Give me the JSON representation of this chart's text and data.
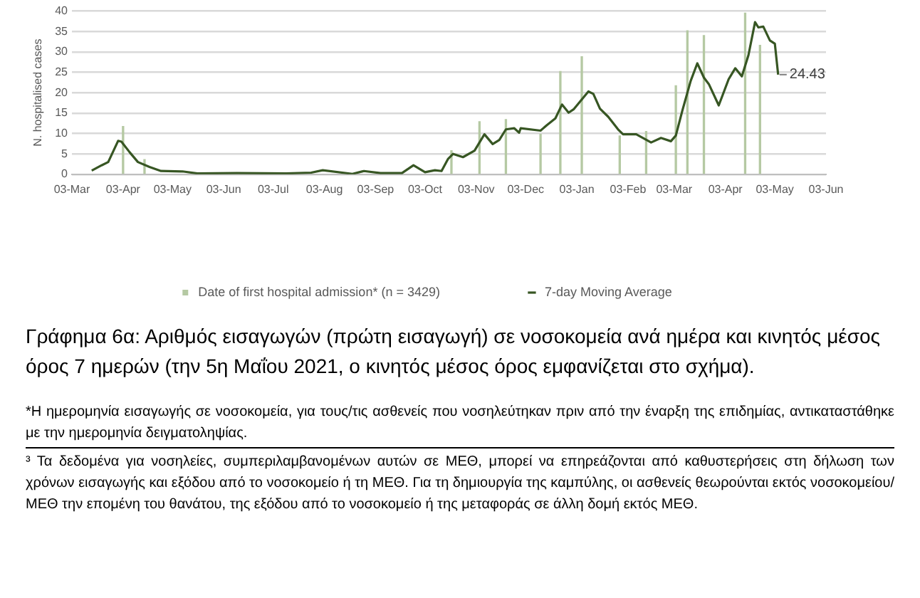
{
  "chart_data": {
    "type": "line",
    "title": "Γράφημα 6α: Αριθμός εισαγωγών (πρώτη εισαγωγή) σε νοσοκομεία ανά ημέρα και κινητός μέσος όρος 7 ημερών (την 5η Μαΐου 2021, ο κινητός μέσος όρος εμφανίζεται στο σχήμα).",
    "ylabel": "N. hospitalised cases",
    "annotations": [
      {
        "text": "24.43",
        "x": "2021-05-05",
        "y": 24.43
      },
      "*Η ημερομηνία εισαγωγής σε νοσοκομεία, για τους/τις ασθενείς που νοσηλεύτηκαν πριν από την έναρξη της επιδημίας, αντικαταστάθηκε με την ημερομηνία δειγματοληψίας.",
      "³ Τα δεδομένα για νοσηλείες, συμπεριλαμβανομένων αυτών σε ΜΕΘ, μπορεί να επηρεάζονται από καθυστερήσεις στη δήλωση των χρόνων εισαγωγής και εξόδου από το νοσοκομείο ή τη ΜΕΘ. Για τη δημιουργία της καμπύλης, οι ασθενείς θεωρούνται εκτός νοσοκομείου/ΜΕΘ την επομένη του θανάτου, της εξόδου από το νοσοκομείο ή της μεταφοράς σε άλλη δομή εκτός ΜΕΘ."
    ],
    "series": [
      {
        "type": "bar",
        "name": "Date of first hospital admission* (n = 3429)",
        "color": "#b5c9a3",
        "x": [
          "2020-04-03",
          "2020-04-16",
          "2020-10-19",
          "2020-11-05",
          "2020-11-21",
          "2020-12-12",
          "2020-12-24",
          "2021-01-06",
          "2021-01-29",
          "2021-02-14",
          "2021-03-04",
          "2021-03-11",
          "2021-03-21",
          "2021-04-15",
          "2021-04-24"
        ],
        "values": [
          11.7,
          3.6,
          5.8,
          12.9,
          13.4,
          9.8,
          25.2,
          28.8,
          9.4,
          10.5,
          21.7,
          35.2,
          34,
          39.5,
          31.6
        ]
      },
      {
        "name": "7-day Moving Average",
        "color": "#375623",
        "x": [
          "2020-03-15",
          "2020-03-21",
          "2020-03-25",
          "2020-03-31",
          "2020-04-02",
          "2020-04-07",
          "2020-04-12",
          "2020-04-19",
          "2020-04-26",
          "2020-05-09",
          "2020-05-18",
          "2020-06-11",
          "2020-07-11",
          "2020-07-26",
          "2020-08-02",
          "2020-08-20",
          "2020-08-27",
          "2020-09-06",
          "2020-09-19",
          "2020-09-26",
          "2020-10-03",
          "2020-10-09",
          "2020-10-13",
          "2020-10-17",
          "2020-10-20",
          "2020-10-26",
          "2020-11-02",
          "2020-11-08",
          "2020-11-13",
          "2020-11-17",
          "2020-11-21",
          "2020-11-26",
          "2020-11-29",
          "2020-11-30",
          "2020-12-12",
          "2020-12-16",
          "2020-12-21",
          "2020-12-25",
          "2020-12-29",
          "2021-01-01",
          "2021-01-10",
          "2021-01-13",
          "2021-01-17",
          "2021-01-22",
          "2021-01-28",
          "2021-01-31",
          "2021-02-08",
          "2021-02-17",
          "2021-02-23",
          "2021-03-01",
          "2021-03-04",
          "2021-03-08",
          "2021-03-13",
          "2021-03-17",
          "2021-03-21",
          "2021-03-24",
          "2021-03-30",
          "2021-04-05",
          "2021-04-09",
          "2021-04-13",
          "2021-04-17",
          "2021-04-21",
          "2021-04-23",
          "2021-04-26",
          "2021-04-30",
          "2021-05-03",
          "2021-05-05"
        ],
        "values": [
          0.9,
          2.2,
          3,
          8.2,
          8,
          5.4,
          3,
          1.8,
          0.8,
          0.7,
          0.2,
          0.3,
          0.2,
          0.4,
          1.0,
          0.1,
          0.8,
          0.3,
          0.3,
          2.2,
          0.5,
          1.0,
          0.8,
          3.8,
          5.0,
          4.2,
          5.8,
          9.8,
          7.4,
          8.4,
          11,
          11.3,
          10.2,
          11.3,
          10.7,
          12.1,
          13.7,
          17.1,
          15.1,
          15.9,
          20.3,
          19.7,
          16.1,
          14.1,
          11,
          9.8,
          9.8,
          7.8,
          8.9,
          8.1,
          9.5,
          15.7,
          22.9,
          27.2,
          23.7,
          22.1,
          16.9,
          23.3,
          26.0,
          24.0,
          29.2,
          37.3,
          36.0,
          36.2,
          32.8,
          32.0,
          24.43
        ]
      }
    ],
    "xlim": [
      "2020-03-03",
      "2021-06-03"
    ],
    "xticks": [
      {
        "value": "2020-03-03",
        "label": "03-Mar"
      },
      {
        "value": "2020-04-03",
        "label": "03-Apr"
      },
      {
        "value": "2020-05-03",
        "label": "03-May"
      },
      {
        "value": "2020-06-03",
        "label": "03-Jun"
      },
      {
        "value": "2020-07-03",
        "label": "03-Jul"
      },
      {
        "value": "2020-08-03",
        "label": "03-Aug"
      },
      {
        "value": "2020-09-03",
        "label": "03-Sep"
      },
      {
        "value": "2020-10-03",
        "label": "03-Oct"
      },
      {
        "value": "2020-11-03",
        "label": "03-Nov"
      },
      {
        "value": "2020-12-03",
        "label": "03-Dec"
      },
      {
        "value": "2021-01-03",
        "label": "03-Jan"
      },
      {
        "value": "2021-02-03",
        "label": "03-Feb"
      },
      {
        "value": "2021-03-03",
        "label": "03-Mar"
      },
      {
        "value": "2021-04-03",
        "label": "03-Apr"
      },
      {
        "value": "2021-05-03",
        "label": "03-May"
      },
      {
        "value": "2021-06-03",
        "label": "03-Jun"
      }
    ],
    "ylim": [
      0,
      40
    ],
    "yticks": [
      0,
      5,
      10,
      15,
      20,
      25,
      30,
      35,
      40
    ],
    "grid": "y",
    "legend": "bottom",
    "line_style": "solid",
    "marker": "none"
  }
}
